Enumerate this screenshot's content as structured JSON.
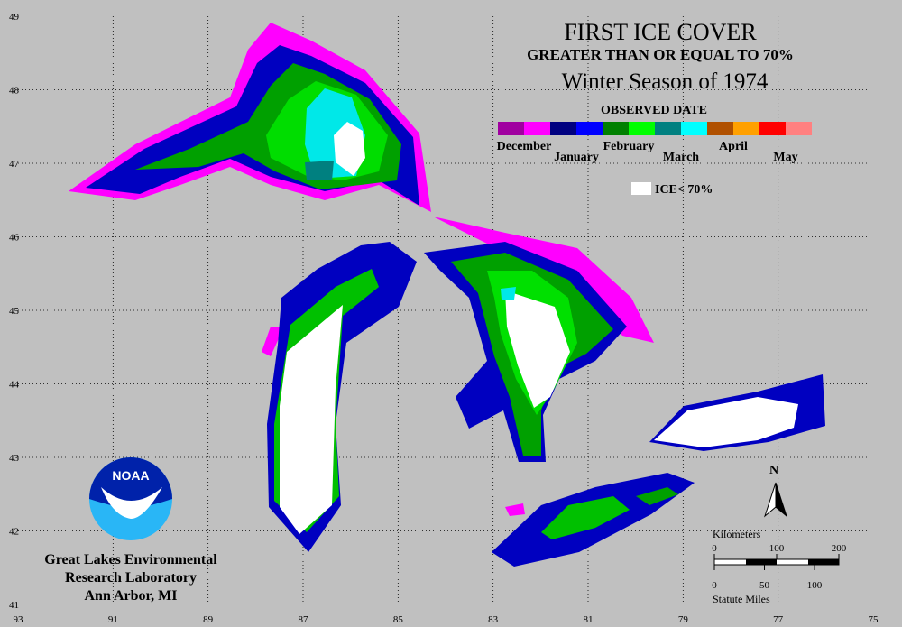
{
  "title": "FIRST ICE COVER",
  "subtitle": "GREATER THAN OR EQUAL TO 70%",
  "season": "Winter Season of 1974",
  "legend": {
    "title": "OBSERVED DATE",
    "items": [
      {
        "label": "December",
        "colors": [
          "#a000a0",
          "#ff00ff"
        ]
      },
      {
        "label": "January",
        "colors": [
          "#000080",
          "#0000ff"
        ]
      },
      {
        "label": "February",
        "colors": [
          "#008000",
          "#00ff00"
        ]
      },
      {
        "label": "March",
        "colors": [
          "#008080",
          "#00ffff"
        ]
      },
      {
        "label": "April",
        "colors": [
          "#b05000",
          "#ffa000"
        ]
      },
      {
        "label": "May",
        "colors": [
          "#ff0000",
          "#ff8080"
        ]
      }
    ],
    "ice_label": "ICE< 70%"
  },
  "latitudes": [
    49,
    48,
    47,
    46,
    45,
    44,
    43,
    42,
    41
  ],
  "longitudes": [
    93,
    91,
    89,
    87,
    85,
    83,
    81,
    79,
    77,
    75
  ],
  "north": "N",
  "scale": {
    "km_label": "Kilometers",
    "km_ticks": [
      0,
      100,
      200
    ],
    "mi_label": "Statute Miles",
    "mi_ticks": [
      0,
      50,
      100
    ]
  },
  "logo": "NOAA",
  "credit": [
    "Great Lakes Environmental",
    "Research Laboratory",
    "Ann Arbor, MI"
  ]
}
